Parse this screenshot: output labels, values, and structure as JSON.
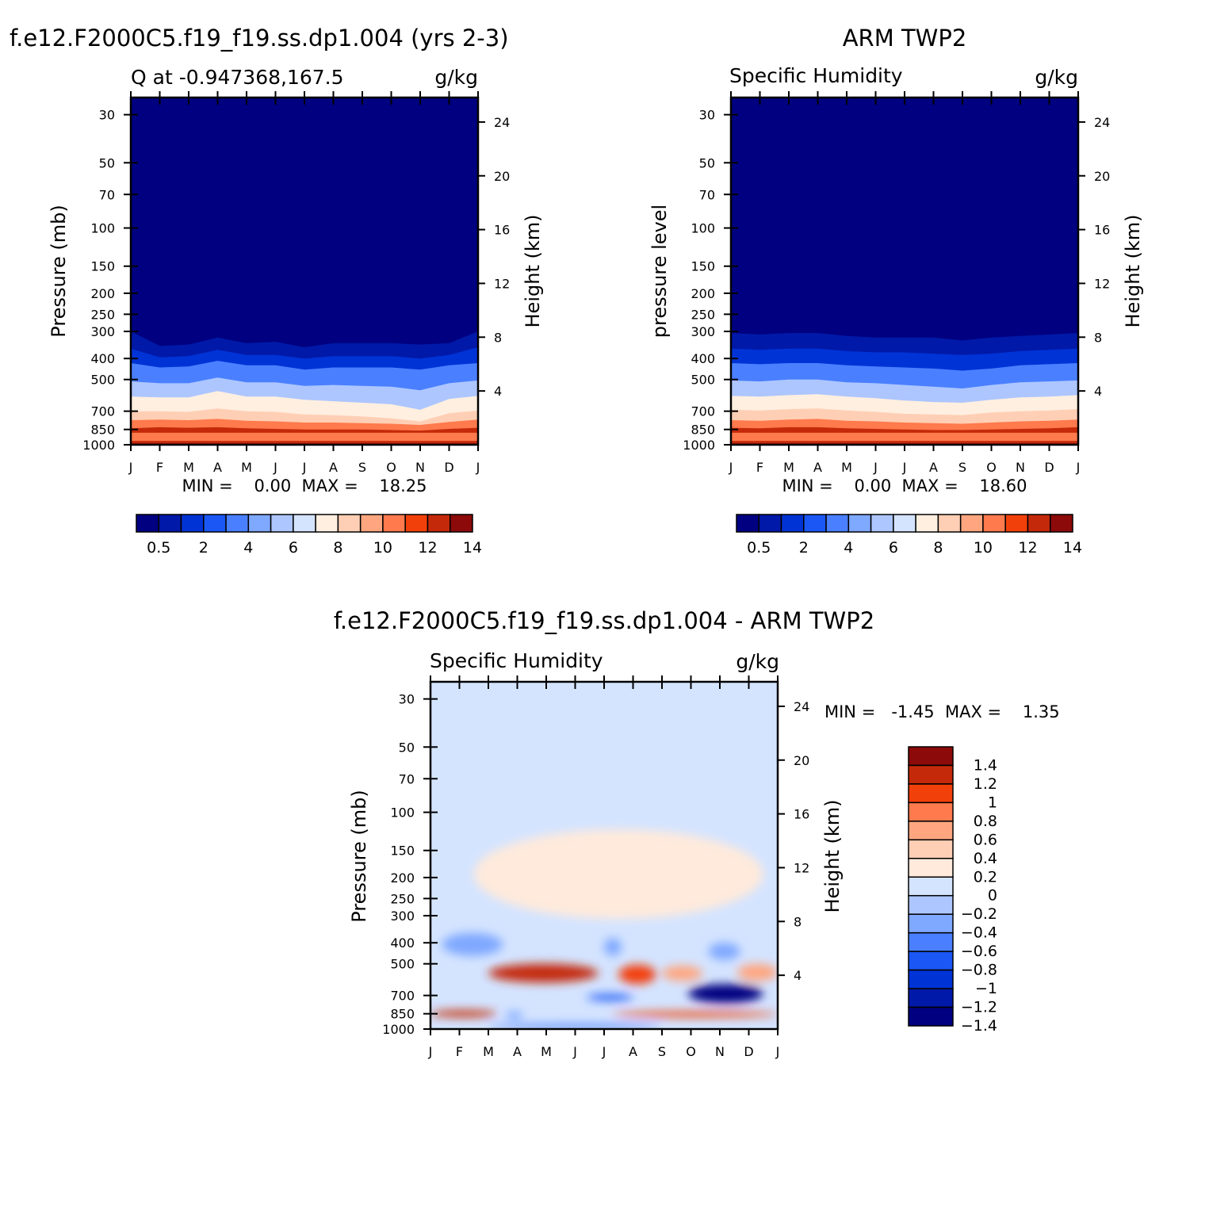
{
  "panel_a": {
    "title": "f.e12.F2000C5.f19_f19.ss.dp1.004 (yrs 2-3)",
    "left_label": "Q at -0.947368,167.5",
    "units": "g/kg",
    "ylabel": "Pressure (mb)",
    "y2label": "Height (km)",
    "stats": "MIN =    0.00  MAX =    18.25"
  },
  "panel_b": {
    "title": "ARM TWP2",
    "left_label": "Specific Humidity",
    "units": "g/kg",
    "ylabel": "pressure level",
    "y2label": "Height (km)",
    "stats": "MIN =    0.00  MAX =    18.60"
  },
  "panel_c": {
    "title": "f.e12.F2000C5.f19_f19.ss.dp1.004 - ARM TWP2",
    "left_label": "Specific Humidity",
    "units": "g/kg",
    "ylabel": "Pressure (mb)",
    "y2label": "Height (km)",
    "stats": "MIN =   -1.45  MAX =    1.35"
  },
  "colors": {
    "abs_scale": [
      "#000080",
      "#0019a8",
      "#0033d6",
      "#1a57f5",
      "#4a80ff",
      "#7fa8ff",
      "#adc6ff",
      "#d4e4ff",
      "#ffefe0",
      "#ffcfb5",
      "#ffa680",
      "#ff7a4d",
      "#f2400a",
      "#c42a0a",
      "#8c0a0a"
    ],
    "diff_scale": [
      "#000080",
      "#0019a8",
      "#0033d6",
      "#1a57f5",
      "#4a80ff",
      "#7fa8ff",
      "#adc6ff",
      "#d4e4ff",
      "#ffeadb",
      "#ffcfb5",
      "#ffa680",
      "#ff7a4d",
      "#f2400a",
      "#c42a0a",
      "#8c0a0a"
    ]
  },
  "chart_data": [
    {
      "type": "heatmap",
      "title": "f.e12.F2000C5.f19_f19.ss.dp1.004 (yrs 2-3)",
      "subtitle": "Q at -0.947368,167.5",
      "units": "g/kg",
      "xlabel": "",
      "ylabel": "Pressure (mb)",
      "y2label": "Height (km)",
      "x_ticks": [
        "J",
        "F",
        "M",
        "A",
        "M",
        "J",
        "J",
        "A",
        "S",
        "O",
        "N",
        "D",
        "J"
      ],
      "y_ticks": [
        30,
        50,
        70,
        100,
        150,
        200,
        250,
        300,
        400,
        500,
        700,
        850,
        1000
      ],
      "y_scale": "log",
      "ylim": [
        1000,
        25
      ],
      "y2_ticks": [
        4,
        8,
        12,
        16,
        20,
        24
      ],
      "levels": [
        0.5,
        1,
        2,
        3,
        4,
        5,
        6,
        7,
        8,
        9,
        10,
        11,
        12,
        13,
        14
      ],
      "colorbar_labels": [
        "0.5",
        "2",
        "4",
        "6",
        "8",
        "10",
        "12",
        "14"
      ],
      "min": 0.0,
      "max": 18.25,
      "months_x": [
        0,
        1,
        2,
        3,
        4,
        5,
        6,
        7,
        8,
        9,
        10,
        11,
        12
      ],
      "boundary_pressures_by_month": {
        "q0.5": [
          300,
          350,
          345,
          320,
          340,
          335,
          355,
          340,
          340,
          340,
          345,
          340,
          300
        ],
        "q1": [
          360,
          395,
          390,
          365,
          385,
          385,
          400,
          390,
          390,
          390,
          400,
          385,
          355
        ],
        "q2": [
          420,
          440,
          435,
          410,
          430,
          430,
          450,
          440,
          440,
          440,
          450,
          430,
          420
        ],
        "q4": [
          510,
          520,
          520,
          490,
          515,
          515,
          535,
          530,
          535,
          540,
          560,
          520,
          505
        ],
        "q6": [
          600,
          605,
          605,
          565,
          600,
          600,
          620,
          630,
          640,
          650,
          690,
          615,
          595
        ],
        "q8": [
          700,
          700,
          705,
          680,
          700,
          705,
          725,
          730,
          740,
          755,
          780,
          715,
          695
        ],
        "q10": [
          770,
          765,
          770,
          760,
          775,
          780,
          790,
          790,
          795,
          800,
          810,
          785,
          765
        ],
        "q12": [
          840,
          830,
          835,
          830,
          840,
          845,
          850,
          850,
          850,
          855,
          860,
          845,
          835
        ],
        "q14": [
          935,
          930,
          935,
          935,
          940,
          940,
          945,
          945,
          945,
          945,
          950,
          940,
          935
        ]
      }
    },
    {
      "type": "heatmap",
      "title": "ARM TWP2",
      "subtitle": "Specific Humidity",
      "units": "g/kg",
      "xlabel": "",
      "ylabel": "pressure level",
      "y2label": "Height (km)",
      "x_ticks": [
        "J",
        "F",
        "M",
        "A",
        "M",
        "J",
        "J",
        "A",
        "S",
        "O",
        "N",
        "D",
        "J"
      ],
      "y_ticks": [
        30,
        50,
        70,
        100,
        150,
        200,
        250,
        300,
        400,
        500,
        700,
        850,
        1000
      ],
      "y_scale": "log",
      "ylim": [
        1000,
        25
      ],
      "y2_ticks": [
        4,
        8,
        12,
        16,
        20,
        24
      ],
      "levels": [
        0.5,
        1,
        2,
        3,
        4,
        5,
        6,
        7,
        8,
        9,
        10,
        11,
        12,
        13,
        14
      ],
      "colorbar_labels": [
        "0.5",
        "2",
        "4",
        "6",
        "8",
        "10",
        "12",
        "14"
      ],
      "min": 0.0,
      "max": 18.6,
      "months_x": [
        0,
        1,
        2,
        3,
        4,
        5,
        6,
        7,
        8,
        9,
        10,
        11,
        12
      ],
      "boundary_pressures_by_month": {
        "q0.5": [
          305,
          310,
          305,
          305,
          315,
          320,
          320,
          320,
          330,
          320,
          315,
          310,
          305
        ],
        "q1": [
          360,
          365,
          360,
          360,
          370,
          375,
          375,
          380,
          385,
          380,
          370,
          365,
          360
        ],
        "q2": [
          420,
          425,
          420,
          420,
          430,
          435,
          440,
          445,
          455,
          445,
          430,
          425,
          420
        ],
        "q4": [
          505,
          510,
          500,
          500,
          515,
          520,
          530,
          540,
          550,
          530,
          515,
          510,
          505
        ],
        "q6": [
          595,
          600,
          590,
          585,
          600,
          610,
          625,
          635,
          640,
          620,
          605,
          600,
          590
        ],
        "q8": [
          690,
          695,
          685,
          680,
          695,
          705,
          720,
          725,
          730,
          710,
          700,
          695,
          685
        ],
        "q10": [
          770,
          775,
          765,
          760,
          775,
          780,
          790,
          795,
          800,
          790,
          780,
          775,
          765
        ],
        "q12": [
          835,
          840,
          830,
          830,
          840,
          845,
          850,
          855,
          855,
          850,
          845,
          840,
          830
        ],
        "q14": [
          930,
          935,
          930,
          930,
          935,
          940,
          945,
          945,
          945,
          945,
          940,
          935,
          930
        ]
      }
    },
    {
      "type": "heatmap",
      "title": "f.e12.F2000C5.f19_f19.ss.dp1.004 - ARM TWP2",
      "subtitle": "Specific Humidity",
      "units": "g/kg",
      "xlabel": "",
      "ylabel": "Pressure (mb)",
      "y2label": "Height (km)",
      "x_ticks": [
        "J",
        "F",
        "M",
        "A",
        "M",
        "J",
        "J",
        "A",
        "S",
        "O",
        "N",
        "D",
        "J"
      ],
      "y_ticks": [
        30,
        50,
        70,
        100,
        150,
        200,
        250,
        300,
        400,
        500,
        700,
        850,
        1000
      ],
      "y_scale": "log",
      "ylim": [
        1000,
        25
      ],
      "y2_ticks": [
        4,
        8,
        12,
        16,
        20,
        24
      ],
      "levels": [
        -1.4,
        -1.2,
        -1,
        -0.8,
        -0.6,
        -0.4,
        -0.2,
        0,
        0.2,
        0.4,
        0.6,
        0.8,
        1,
        1.2,
        1.4
      ],
      "colorbar_labels": [
        "1.4",
        "1.2",
        "1",
        "0.8",
        "0.6",
        "0.4",
        "0.2",
        "0",
        "-0.2",
        "-0.4",
        "-0.6",
        "-0.8",
        "-1",
        "-1.2",
        "-1.4"
      ],
      "min": -1.45,
      "max": 1.35,
      "features": [
        {
          "value": 0.1,
          "x_range": [
            1.5,
            11.5
          ],
          "p_range": [
            120,
            310
          ]
        },
        {
          "value": -0.5,
          "x_range": [
            0.4,
            2.5
          ],
          "p_range": [
            360,
            460
          ]
        },
        {
          "value": -0.5,
          "x_range": [
            6.0,
            6.6
          ],
          "p_range": [
            380,
            460
          ]
        },
        {
          "value": -0.5,
          "x_range": [
            9.6,
            10.7
          ],
          "p_range": [
            400,
            480
          ]
        },
        {
          "value": 1.0,
          "x_range": [
            2.0,
            5.8
          ],
          "p_range": [
            500,
            610
          ]
        },
        {
          "value": 0.8,
          "x_range": [
            6.5,
            7.8
          ],
          "p_range": [
            505,
            620
          ]
        },
        {
          "value": 0.5,
          "x_range": [
            8.0,
            9.4
          ],
          "p_range": [
            510,
            600
          ]
        },
        {
          "value": 0.5,
          "x_range": [
            10.6,
            12.0
          ],
          "p_range": [
            500,
            600
          ]
        },
        {
          "value": -1.4,
          "x_range": [
            8.9,
            11.5
          ],
          "p_range": [
            620,
            760
          ]
        },
        {
          "value": -0.8,
          "x_range": [
            5.4,
            7.0
          ],
          "p_range": [
            690,
            740
          ]
        },
        {
          "value": 1.1,
          "x_range": [
            0.0,
            2.3
          ],
          "p_range": [
            820,
            880
          ]
        },
        {
          "value": 0.9,
          "x_range": [
            6.3,
            12.0
          ],
          "p_range": [
            830,
            880
          ]
        },
        {
          "value": -0.4,
          "x_range": [
            2.6,
            3.2
          ],
          "p_range": [
            830,
            900
          ]
        },
        {
          "value": -0.6,
          "x_range": [
            2.0,
            8.0
          ],
          "p_range": [
            950,
            1000
          ]
        }
      ]
    }
  ]
}
